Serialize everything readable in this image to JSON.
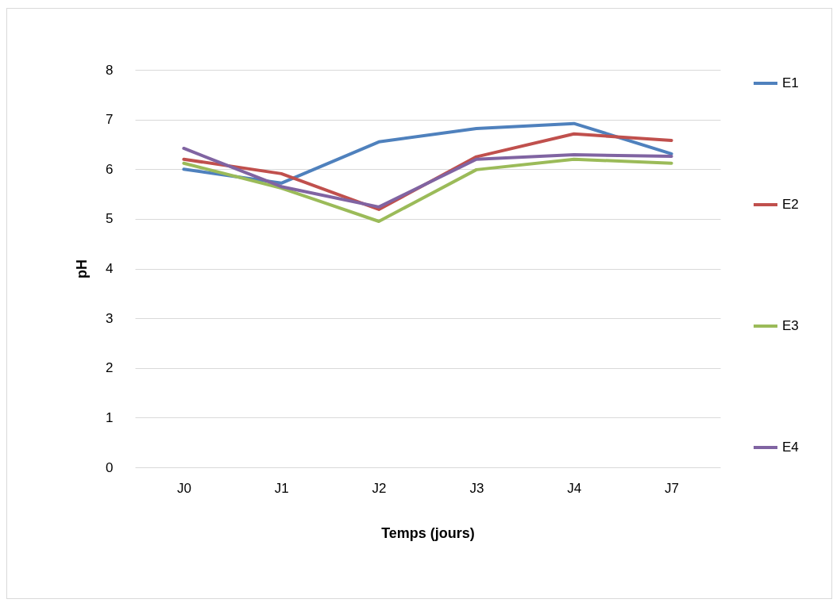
{
  "chart_data": {
    "type": "line",
    "xlabel": "Temps (jours)",
    "ylabel": "pH",
    "categories": [
      "J0",
      "J1",
      "J2",
      "J3",
      "J4",
      "J7"
    ],
    "series": [
      {
        "name": "E1",
        "color": "#4f81bd",
        "values": [
          6.0,
          5.72,
          6.55,
          6.82,
          6.92,
          6.31
        ]
      },
      {
        "name": "E2",
        "color": "#c0504d",
        "values": [
          6.2,
          5.91,
          5.19,
          6.25,
          6.71,
          6.58
        ]
      },
      {
        "name": "E3",
        "color": "#9bbb59",
        "values": [
          6.12,
          5.62,
          4.95,
          5.99,
          6.2,
          6.12
        ]
      },
      {
        "name": "E4",
        "color": "#8064a2",
        "values": [
          6.42,
          5.65,
          5.24,
          6.2,
          6.29,
          6.26
        ]
      }
    ],
    "ylim": [
      0,
      8
    ],
    "yticks": [
      0,
      1,
      2,
      3,
      4,
      5,
      6,
      7,
      8
    ],
    "grid": "y",
    "legend": "right",
    "marker": "none",
    "line_style": "solid"
  }
}
